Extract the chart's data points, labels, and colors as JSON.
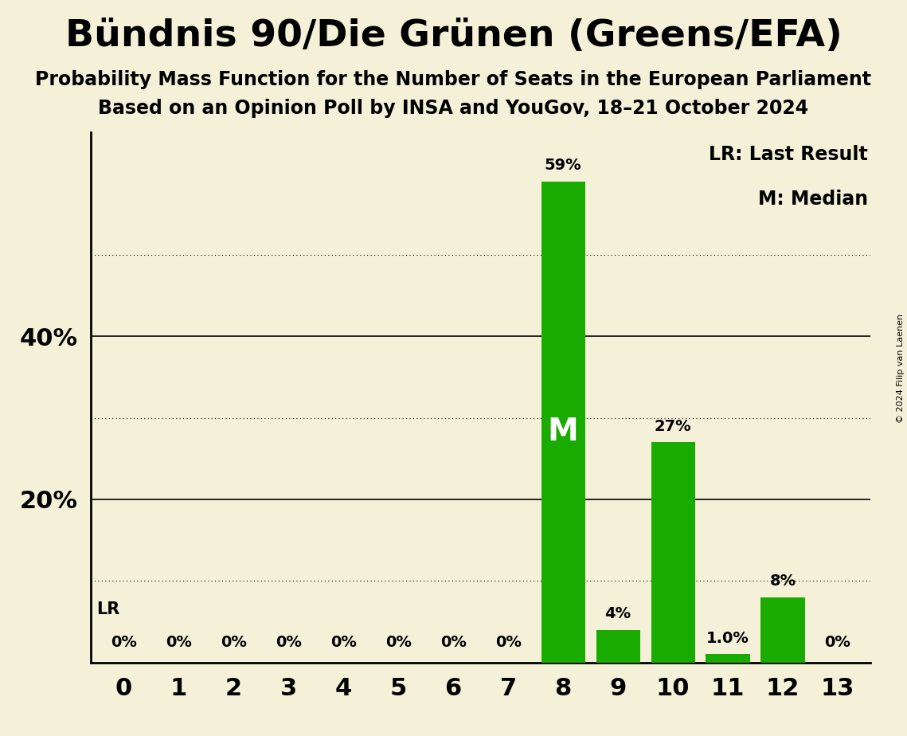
{
  "title": "Bündnis 90/Die Grünen (Greens/EFA)",
  "subtitle1": "Probability Mass Function for the Number of Seats in the European Parliament",
  "subtitle2": "Based on an Opinion Poll by INSA and YouGov, 18–21 October 2024",
  "copyright": "© 2024 Filip van Laenen",
  "categories": [
    0,
    1,
    2,
    3,
    4,
    5,
    6,
    7,
    8,
    9,
    10,
    11,
    12,
    13
  ],
  "values": [
    0,
    0,
    0,
    0,
    0,
    0,
    0,
    0,
    59,
    4,
    27,
    1.0,
    8,
    0
  ],
  "labels": [
    "0%",
    "0%",
    "0%",
    "0%",
    "0%",
    "0%",
    "0%",
    "0%",
    "59%",
    "4%",
    "27%",
    "1.0%",
    "8%",
    "0%"
  ],
  "bar_color": "#1aab00",
  "background_color": "#f5f0d8",
  "median_seat": 8,
  "last_result_seat": 8,
  "median_label": "M",
  "lr_label": "LR",
  "legend_lr": "LR: Last Result",
  "legend_m": "M: Median",
  "solid_yticks": [
    20,
    40
  ],
  "dotted_yticks": [
    10,
    30,
    50
  ],
  "ylim": [
    0,
    65
  ],
  "xlim": [
    -0.6,
    13.6
  ]
}
